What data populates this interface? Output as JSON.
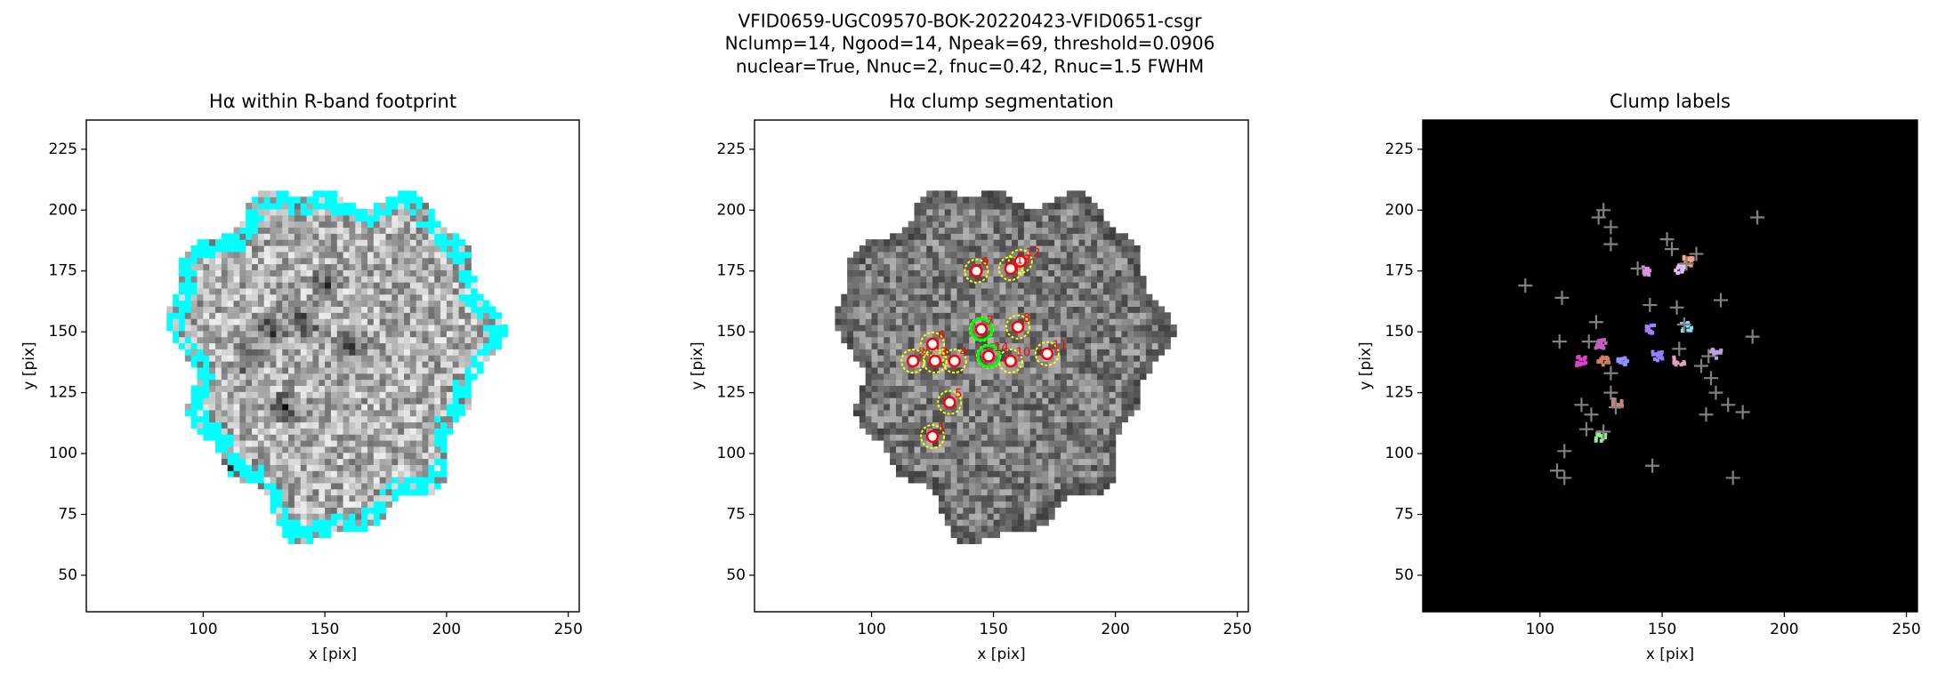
{
  "suptitle": [
    "VFID0659-UGC09570-BOK-20220423-VFID0651-csgr",
    "Nclump=14, Ngood=14, Npeak=69, threshold=0.0906",
    "nuclear=True, Nnuc=2, fnuc=0.42, Rnuc=1.5 FWHM"
  ],
  "chart_data": [
    {
      "type": "image",
      "title": "Hα within R-band footprint",
      "xlabel": "x [pix]",
      "ylabel": "y [pix]",
      "xlim": [
        52,
        254.5
      ],
      "ylim": [
        35,
        237
      ],
      "xticks": [
        100,
        150,
        200,
        250
      ],
      "yticks": [
        50,
        75,
        100,
        125,
        150,
        175,
        200,
        225
      ],
      "cmap": "gray_r",
      "edge_color": "#00ffff",
      "background": "#ffffff"
    },
    {
      "type": "scatter",
      "title": "Hα clump segmentation",
      "xlabel": "x [pix]",
      "ylabel": "y [pix]",
      "xlim": [
        52,
        254.5
      ],
      "ylim": [
        35,
        237
      ],
      "xticks": [
        100,
        150,
        200,
        250
      ],
      "yticks": [
        50,
        75,
        100,
        125,
        150,
        175,
        200,
        225
      ],
      "cmap": "gray",
      "background": "#ffffff",
      "marker": "o",
      "color": "#ff0000",
      "contour_color": "#ffff00",
      "nuclear_color": "#00ff00",
      "x": [
        125,
        117,
        126,
        134,
        132,
        125,
        145,
        160,
        143,
        157,
        172,
        161,
        157,
        148
      ],
      "y": [
        107,
        138,
        138,
        138,
        121,
        145,
        151,
        152,
        175,
        138,
        141,
        179,
        176,
        140
      ],
      "labels": [
        "1",
        "2",
        "3",
        "4",
        "5",
        "6",
        "7",
        "8",
        "9",
        "10",
        "11",
        "12",
        "13",
        "14"
      ],
      "nuclear": [
        false,
        false,
        false,
        false,
        false,
        false,
        true,
        false,
        false,
        false,
        false,
        false,
        false,
        true
      ]
    },
    {
      "type": "scatter",
      "title": "Clump labels",
      "xlabel": "x [pix]",
      "ylabel": "y [pix]",
      "xlim": [
        52,
        254.5
      ],
      "ylim": [
        35,
        237
      ],
      "xticks": [
        100,
        150,
        200,
        250
      ],
      "yticks": [
        50,
        75,
        100,
        125,
        150,
        175,
        200,
        225
      ],
      "background": "#000000",
      "marker": "+",
      "color": "#808080",
      "patch_colors": [
        "#90ee90",
        "#e040d0",
        "#d08060",
        "#9090ff",
        "#d08080",
        "#c060c0",
        "#a080ff",
        "#80e0ff",
        "#e090e0",
        "#e0a0c0",
        "#c0a0e0",
        "#ffa080",
        "#e0c0ff",
        "#9080ff"
      ],
      "x": [
        189,
        94,
        109,
        126,
        124,
        129,
        129,
        152,
        154,
        164,
        160,
        140,
        145,
        156,
        159,
        174,
        187,
        123,
        108,
        120,
        129,
        169,
        157,
        166,
        172,
        177,
        170,
        129,
        131,
        117,
        121,
        126,
        119,
        110,
        107,
        110,
        146,
        179,
        168,
        183
      ],
      "y": [
        197,
        169,
        164,
        200,
        197,
        193,
        186,
        188,
        184,
        182,
        178,
        176,
        161,
        160,
        153,
        163,
        148,
        154,
        146,
        146,
        133,
        140,
        143,
        136,
        125,
        120,
        131,
        125,
        119,
        120,
        116,
        109,
        110,
        101,
        93,
        90,
        95,
        90,
        116,
        117
      ]
    }
  ]
}
